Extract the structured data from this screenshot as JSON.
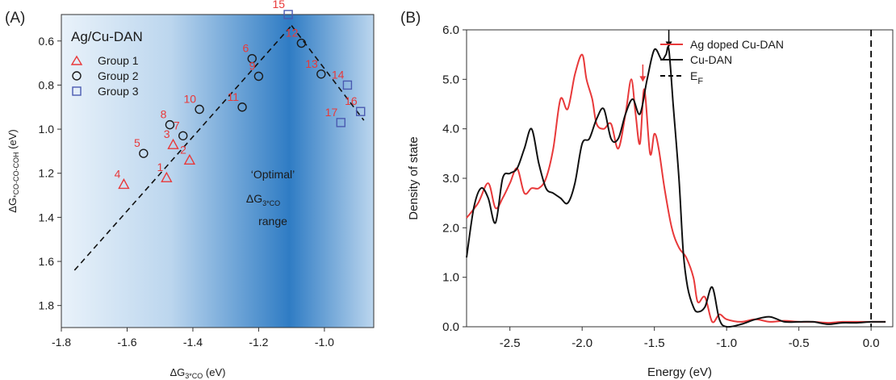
{
  "chart_data": [
    {
      "panel_label": "(A)",
      "type": "scatter",
      "title": "Ag/Cu-DAN",
      "xlabel": "ΔG",
      "xlabel_sub": "3*CO",
      "xlabel_unit": " (eV)",
      "ylabel": "ΔG",
      "ylabel_sub": "*CO-CO-COH",
      "ylabel_unit": " (eV)",
      "xlim": [
        -1.8,
        -0.85
      ],
      "ylim": [
        1.9,
        0.48
      ],
      "y_inverted": true,
      "xticks": [
        "-1.8",
        "-1.6",
        "-1.4",
        "-1.2",
        "-1.0"
      ],
      "xtick_values": [
        -1.8,
        -1.6,
        -1.4,
        -1.2,
        -1.0
      ],
      "yticks": [
        "0.6",
        "0.8",
        "1.0",
        "1.2",
        "1.4",
        "1.6",
        "1.8"
      ],
      "ytick_values": [
        0.6,
        0.8,
        1.0,
        1.2,
        1.4,
        1.6,
        1.8
      ],
      "legend_position": "top-left",
      "series": [
        {
          "name": "Group 1",
          "marker": "triangle",
          "color": "#e8393a",
          "points": [
            {
              "label": "1",
              "x": -1.48,
              "y": 1.22
            },
            {
              "label": "2",
              "x": -1.41,
              "y": 1.14
            },
            {
              "label": "3",
              "x": -1.46,
              "y": 1.07
            },
            {
              "label": "4",
              "x": -1.61,
              "y": 1.25
            }
          ]
        },
        {
          "name": "Group 2",
          "marker": "circle",
          "color": "#1a1a1a",
          "points": [
            {
              "label": "5",
              "x": -1.55,
              "y": 1.11
            },
            {
              "label": "6",
              "x": -1.22,
              "y": 0.68
            },
            {
              "label": "7",
              "x": -1.43,
              "y": 1.03
            },
            {
              "label": "8",
              "x": -1.47,
              "y": 0.98
            },
            {
              "label": "9",
              "x": -1.2,
              "y": 0.76
            },
            {
              "label": "10",
              "x": -1.38,
              "y": 0.91
            },
            {
              "label": "11",
              "x": -1.25,
              "y": 0.9
            },
            {
              "label": "12",
              "x": -1.07,
              "y": 0.61
            },
            {
              "label": "13",
              "x": -1.01,
              "y": 0.75
            }
          ]
        },
        {
          "name": "Group 3",
          "marker": "square",
          "color": "#4a5ab0",
          "points": [
            {
              "label": "14",
              "x": -0.93,
              "y": 0.8
            },
            {
              "label": "15",
              "x": -1.11,
              "y": 0.48
            },
            {
              "label": "16",
              "x": -0.89,
              "y": 0.92
            },
            {
              "label": "17",
              "x": -0.95,
              "y": 0.97
            }
          ]
        }
      ],
      "trend_lines": [
        [
          {
            "x": -1.76,
            "y": 1.64
          },
          {
            "x": -1.1,
            "y": 0.53
          }
        ],
        [
          {
            "x": -1.1,
            "y": 0.53
          },
          {
            "x": -0.88,
            "y": 0.96
          }
        ]
      ],
      "annotation": {
        "line1": "‘Optimal’",
        "line2": "ΔG",
        "line2_sub": "3*CO",
        "line3": "range"
      }
    },
    {
      "panel_label": "(B)",
      "type": "line",
      "xlabel": "Energy (eV)",
      "ylabel": "Density of state",
      "xlim": [
        -2.8,
        0.15
      ],
      "ylim": [
        0,
        6.0
      ],
      "xticks": [
        "-2.5",
        "-2.0",
        "-1.5",
        "-1.0",
        "-0.5",
        "0.0"
      ],
      "xtick_values": [
        -2.5,
        -2.0,
        -1.5,
        -1.0,
        -0.5,
        0.0
      ],
      "yticks": [
        "0.0",
        "1.0",
        "2.0",
        "3.0",
        "4.0",
        "5.0",
        "6.0"
      ],
      "ytick_values": [
        0,
        1,
        2,
        3,
        4,
        5,
        6
      ],
      "legend_position": "top-right",
      "series": [
        {
          "name": "Ag doped Cu-DAN",
          "color": "#e8393a",
          "x": [
            -2.8,
            -2.72,
            -2.65,
            -2.6,
            -2.55,
            -2.5,
            -2.45,
            -2.4,
            -2.35,
            -2.3,
            -2.25,
            -2.2,
            -2.15,
            -2.1,
            -2.05,
            -2.0,
            -1.97,
            -1.93,
            -1.9,
            -1.85,
            -1.8,
            -1.75,
            -1.7,
            -1.66,
            -1.63,
            -1.6,
            -1.57,
            -1.53,
            -1.5,
            -1.47,
            -1.43,
            -1.38,
            -1.33,
            -1.28,
            -1.23,
            -1.2,
            -1.15,
            -1.1,
            -1.05,
            -1.0,
            -0.9,
            -0.8,
            -0.7,
            -0.6,
            -0.5,
            -0.4,
            -0.3,
            -0.2,
            -0.1,
            0.0,
            0.1
          ],
          "y": [
            2.2,
            2.5,
            2.9,
            2.4,
            2.6,
            2.9,
            3.2,
            2.7,
            2.8,
            2.8,
            3.0,
            3.6,
            4.6,
            4.4,
            5.1,
            5.5,
            5.0,
            4.6,
            4.1,
            4.0,
            4.1,
            3.6,
            4.3,
            5.0,
            4.3,
            3.7,
            4.8,
            3.5,
            3.9,
            3.6,
            2.8,
            2.0,
            1.6,
            1.4,
            1.0,
            0.5,
            0.6,
            0.1,
            0.25,
            0.15,
            0.1,
            0.15,
            0.1,
            0.12,
            0.1,
            0.1,
            0.08,
            0.1,
            0.1,
            0.1,
            0.1
          ]
        },
        {
          "name": "Cu-DAN",
          "color": "#111111",
          "x": [
            -2.8,
            -2.75,
            -2.7,
            -2.65,
            -2.6,
            -2.55,
            -2.5,
            -2.45,
            -2.4,
            -2.35,
            -2.3,
            -2.25,
            -2.2,
            -2.15,
            -2.1,
            -2.05,
            -2.0,
            -1.95,
            -1.9,
            -1.85,
            -1.8,
            -1.75,
            -1.7,
            -1.65,
            -1.6,
            -1.55,
            -1.5,
            -1.45,
            -1.42,
            -1.4,
            -1.37,
            -1.33,
            -1.3,
            -1.27,
            -1.23,
            -1.2,
            -1.15,
            -1.1,
            -1.05,
            -1.0,
            -0.9,
            -0.8,
            -0.7,
            -0.6,
            -0.5,
            -0.4,
            -0.3,
            -0.2,
            -0.1,
            0.0,
            0.1
          ],
          "y": [
            1.4,
            2.4,
            2.8,
            2.6,
            2.1,
            3.0,
            3.1,
            3.2,
            3.6,
            4.0,
            3.3,
            2.8,
            2.7,
            2.6,
            2.5,
            2.9,
            3.7,
            3.8,
            4.2,
            4.4,
            3.8,
            3.8,
            4.3,
            4.6,
            4.3,
            5.0,
            5.6,
            5.4,
            5.5,
            5.6,
            4.5,
            3.0,
            1.5,
            0.8,
            0.4,
            0.3,
            0.4,
            0.8,
            0.15,
            0.0,
            0.05,
            0.15,
            0.2,
            0.1,
            0.1,
            0.1,
            0.05,
            0.08,
            0.08,
            0.1,
            0.1
          ]
        },
        {
          "name": "E",
          "name_sub": "F",
          "color": "#000000",
          "dashed": true,
          "x_value": 0.0
        }
      ],
      "arrows": [
        {
          "x": -1.4,
          "y_from": 6.0,
          "y_to": 5.65,
          "color": "#000000"
        },
        {
          "x": -1.58,
          "y_from": 5.3,
          "y_to": 4.95,
          "color": "#e8393a"
        }
      ]
    }
  ]
}
